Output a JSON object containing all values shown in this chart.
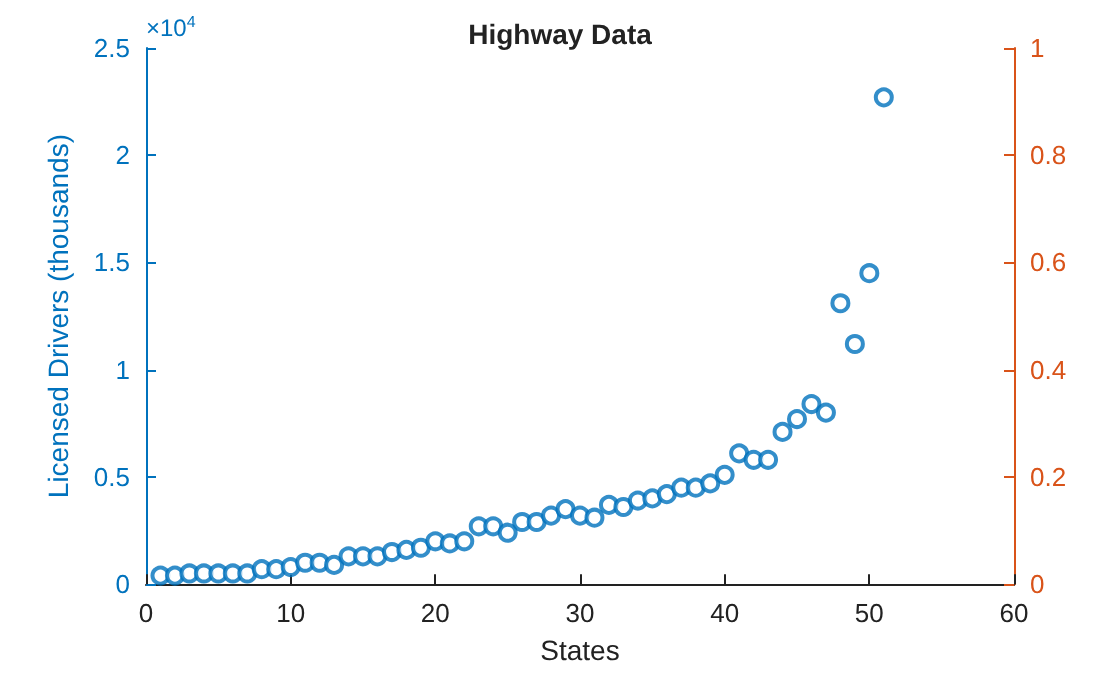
{
  "chart_data": {
    "type": "scatter",
    "title": "Highway Data",
    "xlabel": "States",
    "ylabel": "Licensed Drivers (thousands)",
    "annotations": [
      "×10$^{4}$"
    ],
    "x": [
      1,
      2,
      3,
      4,
      5,
      6,
      7,
      8,
      9,
      10,
      11,
      12,
      13,
      14,
      15,
      16,
      17,
      18,
      19,
      20,
      21,
      22,
      23,
      24,
      25,
      26,
      27,
      28,
      29,
      30,
      31,
      32,
      33,
      34,
      35,
      36,
      37,
      38,
      39,
      40,
      41,
      42,
      43,
      44,
      45,
      46,
      47,
      48,
      49,
      50,
      51
    ],
    "series": [
      {
        "color": "#0072bd",
        "values": [
          0.04,
          0.04,
          0.05,
          0.05,
          0.05,
          0.05,
          0.05,
          0.07,
          0.07,
          0.08,
          0.1,
          0.1,
          0.09,
          0.13,
          0.13,
          0.13,
          0.15,
          0.16,
          0.17,
          0.2,
          0.19,
          0.2,
          0.27,
          0.27,
          0.24,
          0.29,
          0.29,
          0.32,
          0.35,
          0.32,
          0.31,
          0.37,
          0.36,
          0.39,
          0.4,
          0.42,
          0.45,
          0.45,
          0.47,
          0.51,
          0.61,
          0.58,
          0.58,
          0.71,
          0.77,
          0.84,
          0.8,
          1.31,
          1.12,
          1.45,
          2.27
        ]
      }
    ],
    "xlim": [
      0,
      60
    ],
    "xticks": [
      0,
      10,
      20,
      30,
      40,
      50,
      60
    ],
    "ylim": [
      0,
      2.5
    ],
    "yticks": [
      0,
      0.5,
      1,
      1.5,
      2,
      2.5
    ],
    "y2lim": [
      0,
      1
    ],
    "y2ticks": [
      0,
      0.2,
      0.4,
      0.6,
      0.8,
      1
    ],
    "marker": "circle",
    "grid": false
  }
}
